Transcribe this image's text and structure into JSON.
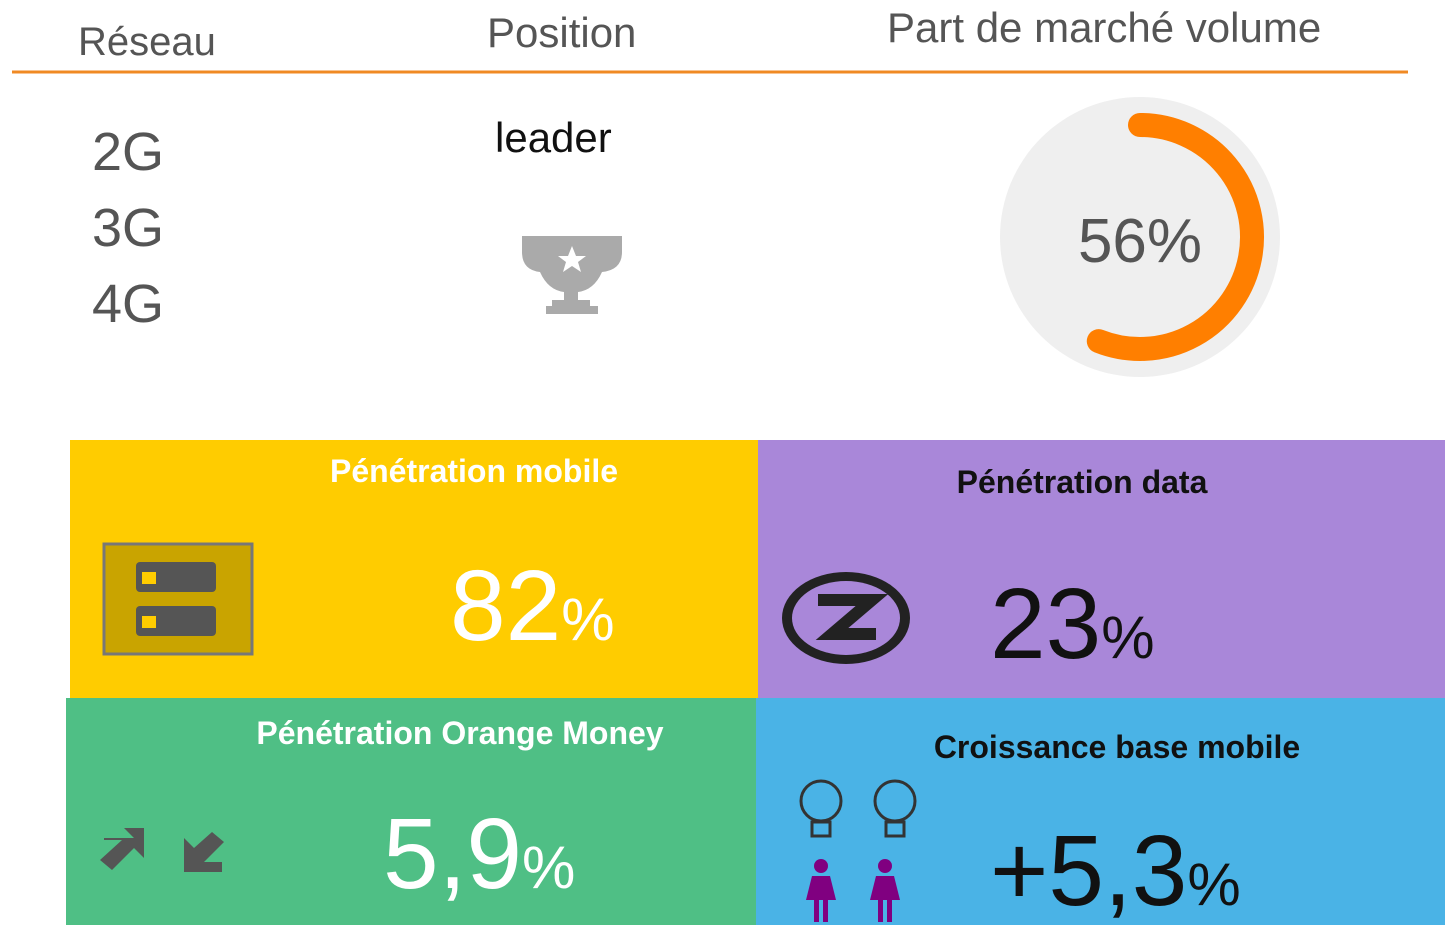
{
  "header": {
    "columns": [
      "Réseau",
      "Position",
      "Part de marché volume"
    ]
  },
  "networks": [
    "2G",
    "3G",
    "4G"
  ],
  "position": "leader",
  "market_share": {
    "value": 56,
    "label": "56%"
  },
  "tiles": [
    {
      "title": "Pénétration mobile",
      "value": "82",
      "unit": "%"
    },
    {
      "title": "Pénétration data",
      "value": "23",
      "unit": "%"
    },
    {
      "title": "Pénétration Orange Money",
      "value": "5,9",
      "unit": "%"
    },
    {
      "title": "Croissance base mobile",
      "value": "+5,3",
      "unit": "%"
    }
  ]
}
